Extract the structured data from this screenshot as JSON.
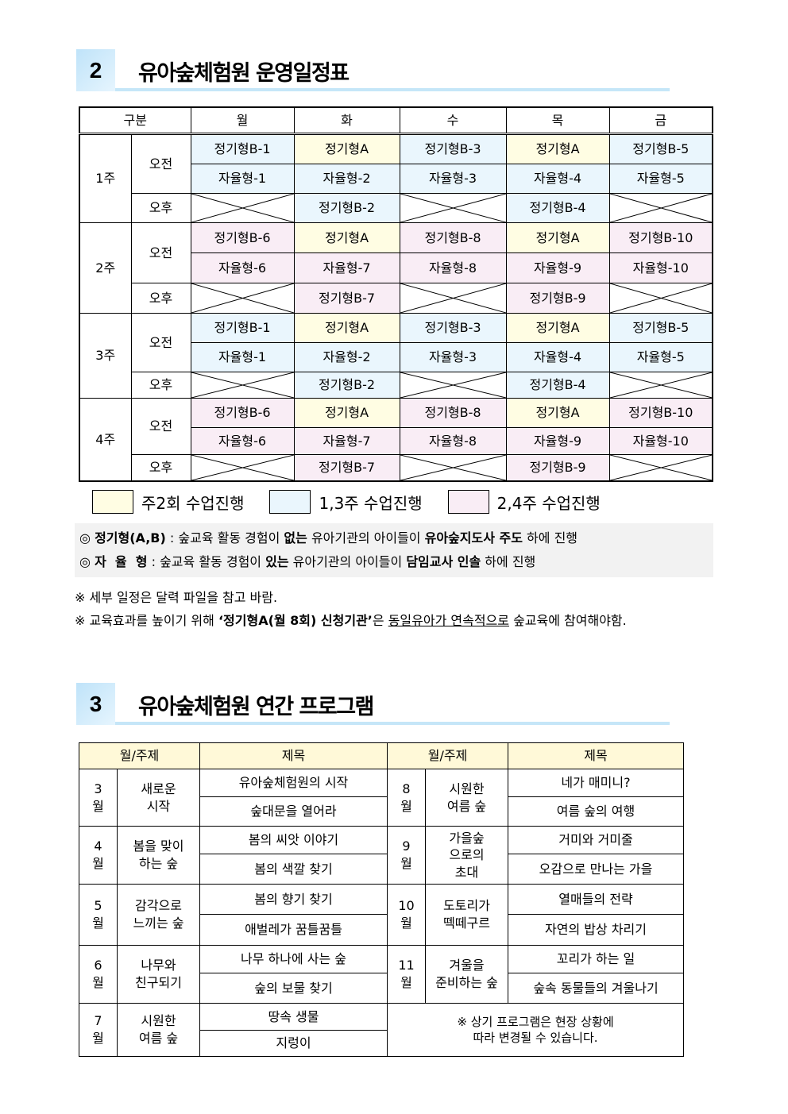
{
  "section2": {
    "number": "2",
    "title": "유아숲체험원 운영일정표"
  },
  "schedule": {
    "header": [
      "구분",
      "월",
      "화",
      "수",
      "목",
      "금"
    ],
    "am": "오전",
    "pm": "오후",
    "weeks": [
      {
        "label": "1주",
        "color": "b",
        "am1": [
          "정기형B-1",
          "정기형A",
          "정기형B-3",
          "정기형A",
          "정기형B-5"
        ],
        "am2": [
          "자율형-1",
          "자율형-2",
          "자율형-3",
          "자율형-4",
          "자율형-5"
        ],
        "pm": [
          null,
          "정기형B-2",
          null,
          "정기형B-4",
          null
        ]
      },
      {
        "label": "2주",
        "color": "p",
        "am1": [
          "정기형B-6",
          "정기형A",
          "정기형B-8",
          "정기형A",
          "정기형B-10"
        ],
        "am2": [
          "자율형-6",
          "자율형-7",
          "자율형-8",
          "자율형-9",
          "자율형-10"
        ],
        "pm": [
          null,
          "정기형B-7",
          null,
          "정기형B-9",
          null
        ]
      },
      {
        "label": "3주",
        "color": "b",
        "am1": [
          "정기형B-1",
          "정기형A",
          "정기형B-3",
          "정기형A",
          "정기형B-5"
        ],
        "am2": [
          "자율형-1",
          "자율형-2",
          "자율형-3",
          "자율형-4",
          "자율형-5"
        ],
        "pm": [
          null,
          "정기형B-2",
          null,
          "정기형B-4",
          null
        ]
      },
      {
        "label": "4주",
        "color": "p",
        "am1": [
          "정기형B-6",
          "정기형A",
          "정기형B-8",
          "정기형A",
          "정기형B-10"
        ],
        "am2": [
          "자율형-6",
          "자율형-7",
          "자율형-8",
          "자율형-9",
          "자율형-10"
        ],
        "pm": [
          null,
          "정기형B-7",
          null,
          "정기형B-9",
          null
        ]
      }
    ],
    "colors": {
      "twice_weekly": "#fffde3",
      "weeks_1_3": "#eaf6fd",
      "weeks_2_4": "#f9edf5"
    }
  },
  "legend": [
    {
      "label": "주2회 수업진행",
      "color": "#fffde3"
    },
    {
      "label": "1,3주 수업진행",
      "color": "#eaf6fd"
    },
    {
      "label": "2,4주 수업진행",
      "color": "#f9edf5"
    }
  ],
  "definitions": {
    "regular": {
      "mark": "◎",
      "term": "정기형(A,B)",
      "sep": " : ",
      "t1": "숲교육 활동 경험이 ",
      "b1": "없는",
      "t2": " 유아기관의 아이들이 ",
      "b2": "유아숲지도사 주도",
      "t3": " 하에 진행"
    },
    "autonomous": {
      "mark": "◎",
      "term": "자  율  형",
      "sep": " : ",
      "t1": "숲교육 활동 경험이 ",
      "b1": "있는",
      "t2": " 유아기관의 아이들이 ",
      "b2": "담임교사 인솔",
      "t3": " 하에 진행"
    }
  },
  "notes": {
    "n1": "※ 세부 일정은 달력 파일을 참고 바람.",
    "n2_a": "※ 교육효과를 높이기 위해 ",
    "n2_b": "‘정기형A(월 8회) 신청기관’",
    "n2_c": "은 ",
    "n2_d": "동일유아가 연속적으로",
    "n2_e": " 숲교육에 참여해야함."
  },
  "section3": {
    "number": "3",
    "title": "유아숲체험원 연간 프로그램"
  },
  "program": {
    "header": [
      "월/주제",
      "제목",
      "월/주제",
      "제목"
    ],
    "rows": [
      {
        "l": {
          "month": "3\n월",
          "theme": "새로운\n시작",
          "titles": [
            "유아숲체험원의 시작",
            "숲대문을 열어라"
          ]
        },
        "r": {
          "month": "8\n월",
          "theme": "시원한\n여름 숲",
          "titles": [
            "네가 매미니?",
            "여름 숲의 여행"
          ]
        }
      },
      {
        "l": {
          "month": "4\n월",
          "theme": "봄을 맞이\n하는 숲",
          "titles": [
            "봄의 씨앗 이야기",
            "봄의 색깔 찾기"
          ]
        },
        "r": {
          "month": "9\n월",
          "theme": "가을숲\n으로의\n초대",
          "titles": [
            "거미와 거미줄",
            "오감으로 만나는 가을"
          ]
        }
      },
      {
        "l": {
          "month": "5\n월",
          "theme": "감각으로\n느끼는 숲",
          "titles": [
            "봄의 향기 찾기",
            "애벌레가 꿈틀꿈틀"
          ]
        },
        "r": {
          "month": "10\n월",
          "theme": "도토리가\n떽떼구르",
          "titles": [
            "열매들의 전략",
            "자연의 밥상 차리기"
          ]
        }
      },
      {
        "l": {
          "month": "6\n월",
          "theme": "나무와\n친구되기",
          "titles": [
            "나무 하나에 사는 숲",
            "숲의 보물 찾기"
          ]
        },
        "r": {
          "month": "11\n월",
          "theme": "겨울을\n준비하는 숲",
          "titles": [
            "꼬리가 하는 일",
            "숲속 동물들의 겨울나기"
          ]
        }
      },
      {
        "l": {
          "month": "7\n월",
          "theme": "시원한\n여름 숲",
          "titles": [
            "땅속 생물",
            "지렁이"
          ]
        },
        "r": {
          "note": "※ 상기 프로그램은 현장 상황에\n따라 변경될 수 있습니다."
        }
      }
    ]
  }
}
